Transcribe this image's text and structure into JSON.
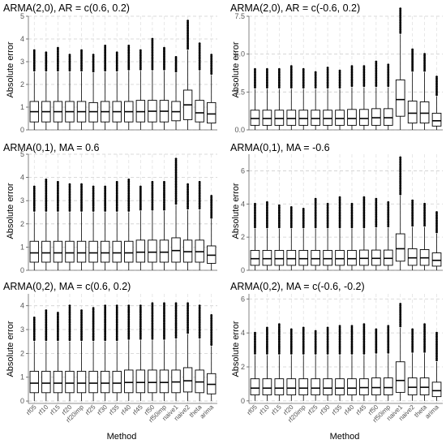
{
  "chart_data": [
    {
      "type": "boxplot",
      "title": "ARMA(2,0), AR = c(0.6, 0.2)",
      "ylabel": "Absolute error",
      "xlabel": "",
      "ylim": [
        0,
        5
      ],
      "yticks": [
        0,
        1,
        2,
        3,
        4,
        5
      ],
      "show_xticklabels": false,
      "grid": true,
      "categories": [
        "rf05",
        "rf10",
        "rf15",
        "rf20",
        "rf20imp",
        "rf25",
        "rf30",
        "rf35",
        "rf40",
        "rf45",
        "rf50",
        "rf50imp",
        "naive1",
        "naive2",
        "theta",
        "arima"
      ],
      "boxes": [
        {
          "whislo": 0,
          "q1": 0.35,
          "med": 0.8,
          "q3": 1.25,
          "whishi": 2.55,
          "outmax": 3.5
        },
        {
          "whislo": 0,
          "q1": 0.35,
          "med": 0.8,
          "q3": 1.25,
          "whishi": 2.55,
          "outmax": 3.4
        },
        {
          "whislo": 0,
          "q1": 0.35,
          "med": 0.8,
          "q3": 1.25,
          "whishi": 2.55,
          "outmax": 3.6
        },
        {
          "whislo": 0,
          "q1": 0.35,
          "med": 0.8,
          "q3": 1.25,
          "whishi": 2.55,
          "outmax": 3.3
        },
        {
          "whislo": 0,
          "q1": 0.35,
          "med": 0.8,
          "q3": 1.25,
          "whishi": 2.55,
          "outmax": 3.5
        },
        {
          "whislo": 0,
          "q1": 0.35,
          "med": 0.8,
          "q3": 1.2,
          "whishi": 2.5,
          "outmax": 3.3
        },
        {
          "whislo": 0,
          "q1": 0.35,
          "med": 0.8,
          "q3": 1.25,
          "whishi": 2.55,
          "outmax": 3.7
        },
        {
          "whislo": 0,
          "q1": 0.35,
          "med": 0.8,
          "q3": 1.25,
          "whishi": 2.55,
          "outmax": 3.4
        },
        {
          "whislo": 0,
          "q1": 0.35,
          "med": 0.8,
          "q3": 1.25,
          "whishi": 2.6,
          "outmax": 3.7
        },
        {
          "whislo": 0,
          "q1": 0.35,
          "med": 0.8,
          "q3": 1.3,
          "whishi": 2.6,
          "outmax": 3.5
        },
        {
          "whislo": 0,
          "q1": 0.35,
          "med": 0.82,
          "q3": 1.3,
          "whishi": 2.6,
          "outmax": 4.0
        },
        {
          "whislo": 0,
          "q1": 0.35,
          "med": 0.82,
          "q3": 1.3,
          "whishi": 2.6,
          "outmax": 3.6
        },
        {
          "whislo": 0,
          "q1": 0.4,
          "med": 0.8,
          "q3": 1.25,
          "whishi": 2.5,
          "outmax": 3.2
        },
        {
          "whislo": 0,
          "q1": 0.45,
          "med": 1.1,
          "q3": 1.75,
          "whishi": 3.5,
          "outmax": 4.8
        },
        {
          "whislo": 0,
          "q1": 0.35,
          "med": 0.75,
          "q3": 1.3,
          "whishi": 2.6,
          "outmax": 3.8
        },
        {
          "whislo": 0,
          "q1": 0.3,
          "med": 0.7,
          "q3": 1.2,
          "whishi": 2.4,
          "outmax": 3.3
        }
      ]
    },
    {
      "type": "boxplot",
      "title": "ARMA(2,0), AR = c(-0.6, 0.2)",
      "ylabel": "Absolute error",
      "xlabel": "",
      "ylim": [
        0,
        7.5
      ],
      "yticks": [
        0,
        2.5,
        5,
        7.5
      ],
      "ytick_labels": [
        "0.0",
        "2.5",
        "5.0",
        "7.5"
      ],
      "show_xticklabels": false,
      "grid": true,
      "categories": [
        "rf05",
        "rf10",
        "rf15",
        "rf20",
        "rf20imp",
        "rf25",
        "rf30",
        "rf35",
        "rf40",
        "rf45",
        "rf50",
        "rf50imp",
        "naive1",
        "naive2",
        "theta",
        "arima"
      ],
      "boxes": [
        {
          "whislo": 0,
          "q1": 0.3,
          "med": 0.75,
          "q3": 1.3,
          "whishi": 2.7,
          "outmax": 4.0
        },
        {
          "whislo": 0,
          "q1": 0.3,
          "med": 0.75,
          "q3": 1.3,
          "whishi": 2.7,
          "outmax": 4.0
        },
        {
          "whislo": 0,
          "q1": 0.3,
          "med": 0.75,
          "q3": 1.3,
          "whishi": 2.7,
          "outmax": 4.0
        },
        {
          "whislo": 0,
          "q1": 0.3,
          "med": 0.75,
          "q3": 1.3,
          "whishi": 2.7,
          "outmax": 4.2
        },
        {
          "whislo": 0,
          "q1": 0.3,
          "med": 0.75,
          "q3": 1.3,
          "whishi": 2.7,
          "outmax": 4.0
        },
        {
          "whislo": 0,
          "q1": 0.3,
          "med": 0.75,
          "q3": 1.3,
          "whishi": 2.7,
          "outmax": 3.8
        },
        {
          "whislo": 0,
          "q1": 0.3,
          "med": 0.75,
          "q3": 1.3,
          "whishi": 2.7,
          "outmax": 4.1
        },
        {
          "whislo": 0,
          "q1": 0.3,
          "med": 0.75,
          "q3": 1.3,
          "whishi": 2.7,
          "outmax": 3.9
        },
        {
          "whislo": 0,
          "q1": 0.3,
          "med": 0.75,
          "q3": 1.35,
          "whishi": 2.8,
          "outmax": 4.2
        },
        {
          "whislo": 0,
          "q1": 0.3,
          "med": 0.75,
          "q3": 1.35,
          "whishi": 2.8,
          "outmax": 4.2
        },
        {
          "whislo": 0,
          "q1": 0.3,
          "med": 0.8,
          "q3": 1.4,
          "whishi": 2.8,
          "outmax": 4.5
        },
        {
          "whislo": 0,
          "q1": 0.3,
          "med": 0.8,
          "q3": 1.4,
          "whishi": 2.8,
          "outmax": 4.3
        },
        {
          "whislo": 0,
          "q1": 0.9,
          "med": 2.0,
          "q3": 3.3,
          "whishi": 6.3,
          "outmax": 8.0
        },
        {
          "whislo": 0,
          "q1": 0.45,
          "med": 1.1,
          "q3": 1.9,
          "whishi": 3.8,
          "outmax": 5.3
        },
        {
          "whislo": 0,
          "q1": 0.45,
          "med": 1.1,
          "q3": 1.85,
          "whishi": 3.8,
          "outmax": 5.0
        },
        {
          "whislo": 0,
          "q1": 0.25,
          "med": 0.6,
          "q3": 1.1,
          "whishi": 2.2,
          "outmax": 3.5
        }
      ]
    },
    {
      "type": "boxplot",
      "title": "ARMA(0,1), MA = 0.6",
      "ylabel": "Absolute error",
      "xlabel": "",
      "ylim": [
        0,
        5
      ],
      "yticks": [
        0,
        1,
        2,
        3,
        4,
        5
      ],
      "show_xticklabels": false,
      "grid": true,
      "categories": [
        "rf05",
        "rf10",
        "rf15",
        "rf20",
        "rf20imp",
        "rf25",
        "rf30",
        "rf35",
        "rf40",
        "rf45",
        "rf50",
        "rf50imp",
        "naive1",
        "naive2",
        "theta",
        "arima"
      ],
      "boxes": [
        {
          "whislo": 0,
          "q1": 0.35,
          "med": 0.75,
          "q3": 1.25,
          "whishi": 2.5,
          "outmax": 3.6
        },
        {
          "whislo": 0,
          "q1": 0.35,
          "med": 0.75,
          "q3": 1.25,
          "whishi": 2.5,
          "outmax": 3.9
        },
        {
          "whislo": 0,
          "q1": 0.35,
          "med": 0.75,
          "q3": 1.25,
          "whishi": 2.5,
          "outmax": 3.8
        },
        {
          "whislo": 0,
          "q1": 0.35,
          "med": 0.75,
          "q3": 1.25,
          "whishi": 2.5,
          "outmax": 3.7
        },
        {
          "whislo": 0,
          "q1": 0.35,
          "med": 0.75,
          "q3": 1.25,
          "whishi": 2.5,
          "outmax": 3.7
        },
        {
          "whislo": 0,
          "q1": 0.35,
          "med": 0.75,
          "q3": 1.25,
          "whishi": 2.5,
          "outmax": 3.6
        },
        {
          "whislo": 0,
          "q1": 0.35,
          "med": 0.75,
          "q3": 1.25,
          "whishi": 2.5,
          "outmax": 3.6
        },
        {
          "whislo": 0,
          "q1": 0.35,
          "med": 0.75,
          "q3": 1.25,
          "whishi": 2.5,
          "outmax": 3.8
        },
        {
          "whislo": 0,
          "q1": 0.35,
          "med": 0.75,
          "q3": 1.25,
          "whishi": 2.5,
          "outmax": 3.9
        },
        {
          "whislo": 0,
          "q1": 0.35,
          "med": 0.78,
          "q3": 1.3,
          "whishi": 2.55,
          "outmax": 3.6
        },
        {
          "whislo": 0,
          "q1": 0.35,
          "med": 0.78,
          "q3": 1.3,
          "whishi": 2.55,
          "outmax": 3.8
        },
        {
          "whislo": 0,
          "q1": 0.35,
          "med": 0.78,
          "q3": 1.3,
          "whishi": 2.55,
          "outmax": 3.8
        },
        {
          "whislo": 0,
          "q1": 0.35,
          "med": 0.85,
          "q3": 1.4,
          "whishi": 2.8,
          "outmax": 4.8
        },
        {
          "whislo": 0,
          "q1": 0.35,
          "med": 0.8,
          "q3": 1.3,
          "whishi": 2.6,
          "outmax": 3.7
        },
        {
          "whislo": 0,
          "q1": 0.35,
          "med": 0.8,
          "q3": 1.3,
          "whishi": 2.6,
          "outmax": 3.8
        },
        {
          "whislo": 0,
          "q1": 0.3,
          "med": 0.65,
          "q3": 1.05,
          "whishi": 2.2,
          "outmax": 3.2
        }
      ]
    },
    {
      "type": "boxplot",
      "title": "ARMA(0,1), MA = -0.6",
      "ylabel": "Absolute error",
      "xlabel": "",
      "ylim": [
        0,
        7
      ],
      "yticks": [
        0,
        2,
        4,
        6
      ],
      "show_xticklabels": false,
      "grid": true,
      "categories": [
        "rf05",
        "rf10",
        "rf15",
        "rf20",
        "rf20imp",
        "rf25",
        "rf30",
        "rf35",
        "rf40",
        "rf45",
        "rf50",
        "rf50imp",
        "naive1",
        "naive2",
        "theta",
        "arima"
      ],
      "boxes": [
        {
          "whislo": 0,
          "q1": 0.3,
          "med": 0.7,
          "q3": 1.2,
          "whishi": 2.5,
          "outmax": 4.0
        },
        {
          "whislo": 0,
          "q1": 0.3,
          "med": 0.7,
          "q3": 1.2,
          "whishi": 2.5,
          "outmax": 4.1
        },
        {
          "whislo": 0,
          "q1": 0.3,
          "med": 0.7,
          "q3": 1.2,
          "whishi": 2.5,
          "outmax": 3.9
        },
        {
          "whislo": 0,
          "q1": 0.3,
          "med": 0.7,
          "q3": 1.2,
          "whishi": 2.5,
          "outmax": 3.8
        },
        {
          "whislo": 0,
          "q1": 0.3,
          "med": 0.7,
          "q3": 1.2,
          "whishi": 2.5,
          "outmax": 3.7
        },
        {
          "whislo": 0,
          "q1": 0.3,
          "med": 0.7,
          "q3": 1.2,
          "whishi": 2.5,
          "outmax": 4.3
        },
        {
          "whislo": 0,
          "q1": 0.3,
          "med": 0.7,
          "q3": 1.2,
          "whishi": 2.5,
          "outmax": 4.0
        },
        {
          "whislo": 0,
          "q1": 0.3,
          "med": 0.7,
          "q3": 1.2,
          "whishi": 2.5,
          "outmax": 4.4
        },
        {
          "whislo": 0,
          "q1": 0.3,
          "med": 0.7,
          "q3": 1.2,
          "whishi": 2.5,
          "outmax": 4.0
        },
        {
          "whislo": 0,
          "q1": 0.3,
          "med": 0.72,
          "q3": 1.22,
          "whishi": 2.5,
          "outmax": 4.4
        },
        {
          "whislo": 0,
          "q1": 0.3,
          "med": 0.72,
          "q3": 1.22,
          "whishi": 2.55,
          "outmax": 4.3
        },
        {
          "whislo": 0,
          "q1": 0.3,
          "med": 0.72,
          "q3": 1.22,
          "whishi": 2.55,
          "outmax": 4.1
        },
        {
          "whislo": 0,
          "q1": 0.55,
          "med": 1.3,
          "q3": 2.2,
          "whishi": 4.5,
          "outmax": 6.8
        },
        {
          "whislo": 0,
          "q1": 0.3,
          "med": 0.75,
          "q3": 1.3,
          "whishi": 2.6,
          "outmax": 4.2
        },
        {
          "whislo": 0,
          "q1": 0.3,
          "med": 0.75,
          "q3": 1.25,
          "whishi": 2.6,
          "outmax": 4.0
        },
        {
          "whislo": 0,
          "q1": 0.25,
          "med": 0.6,
          "q3": 1.05,
          "whishi": 2.2,
          "outmax": 3.5
        }
      ]
    },
    {
      "type": "boxplot",
      "title": "ARMA(0,2), MA = c(0.6, 0.2)",
      "ylabel": "Absolute error",
      "xlabel": "Method",
      "ylim": [
        -0.1,
        4.5
      ],
      "yticks": [
        0,
        1,
        2,
        3,
        4
      ],
      "show_xticklabels": true,
      "grid": true,
      "categories": [
        "rf05",
        "rf10",
        "rf15",
        "rf20",
        "rf20imp",
        "rf25",
        "rf30",
        "rf35",
        "rf40",
        "rf45",
        "rf50",
        "rf50imp",
        "naive1",
        "naive2",
        "theta",
        "arima"
      ],
      "boxes": [
        {
          "whislo": 0,
          "q1": 0.35,
          "med": 0.75,
          "q3": 1.25,
          "whishi": 2.5,
          "outmax": 3.5
        },
        {
          "whislo": 0,
          "q1": 0.35,
          "med": 0.75,
          "q3": 1.25,
          "whishi": 2.5,
          "outmax": 3.8
        },
        {
          "whislo": 0,
          "q1": 0.35,
          "med": 0.75,
          "q3": 1.25,
          "whishi": 2.5,
          "outmax": 3.7
        },
        {
          "whislo": 0,
          "q1": 0.35,
          "med": 0.75,
          "q3": 1.25,
          "whishi": 2.5,
          "outmax": 4.0
        },
        {
          "whislo": 0,
          "q1": 0.35,
          "med": 0.75,
          "q3": 1.25,
          "whishi": 2.5,
          "outmax": 3.8
        },
        {
          "whislo": 0,
          "q1": 0.35,
          "med": 0.75,
          "q3": 1.25,
          "whishi": 2.5,
          "outmax": 3.9
        },
        {
          "whislo": 0,
          "q1": 0.35,
          "med": 0.75,
          "q3": 1.25,
          "whishi": 2.5,
          "outmax": 4.0
        },
        {
          "whislo": 0,
          "q1": 0.35,
          "med": 0.75,
          "q3": 1.25,
          "whishi": 2.5,
          "outmax": 4.0
        },
        {
          "whislo": 0,
          "q1": 0.35,
          "med": 0.78,
          "q3": 1.3,
          "whishi": 2.55,
          "outmax": 4.0
        },
        {
          "whislo": 0,
          "q1": 0.35,
          "med": 0.78,
          "q3": 1.3,
          "whishi": 2.55,
          "outmax": 4.0
        },
        {
          "whislo": 0,
          "q1": 0.35,
          "med": 0.78,
          "q3": 1.3,
          "whishi": 2.55,
          "outmax": 4.1
        },
        {
          "whislo": 0,
          "q1": 0.35,
          "med": 0.78,
          "q3": 1.3,
          "whishi": 2.55,
          "outmax": 4.1
        },
        {
          "whislo": 0,
          "q1": 0.35,
          "med": 0.8,
          "q3": 1.3,
          "whishi": 2.6,
          "outmax": 4.1
        },
        {
          "whislo": 0,
          "q1": 0.38,
          "med": 0.85,
          "q3": 1.4,
          "whishi": 2.8,
          "outmax": 4.1
        },
        {
          "whislo": 0,
          "q1": 0.35,
          "med": 0.8,
          "q3": 1.3,
          "whishi": 2.6,
          "outmax": 4.0
        },
        {
          "whislo": 0,
          "q1": 0.3,
          "med": 0.7,
          "q3": 1.15,
          "whishi": 2.3,
          "outmax": 3.6
        }
      ]
    },
    {
      "type": "boxplot",
      "title": "ARMA(0,2), MA = c(-0.6, -0.2)",
      "ylabel": "Absolute error",
      "xlabel": "Method",
      "ylim": [
        -0.15,
        6.3
      ],
      "yticks": [
        0,
        2,
        4,
        6
      ],
      "show_xticklabels": true,
      "grid": true,
      "categories": [
        "rf05",
        "rf10",
        "rf15",
        "rf20",
        "rf20imp",
        "rf25",
        "rf30",
        "rf35",
        "rf40",
        "rf45",
        "rf50",
        "rf50imp",
        "naive1",
        "naive2",
        "theta",
        "arima"
      ],
      "boxes": [
        {
          "whislo": 0,
          "q1": 0.35,
          "med": 0.75,
          "q3": 1.3,
          "whishi": 2.7,
          "outmax": 4.0
        },
        {
          "whislo": 0,
          "q1": 0.35,
          "med": 0.75,
          "q3": 1.3,
          "whishi": 2.7,
          "outmax": 4.3
        },
        {
          "whislo": 0,
          "q1": 0.35,
          "med": 0.75,
          "q3": 1.3,
          "whishi": 2.7,
          "outmax": 4.5
        },
        {
          "whislo": 0,
          "q1": 0.35,
          "med": 0.75,
          "q3": 1.3,
          "whishi": 2.7,
          "outmax": 4.2
        },
        {
          "whislo": 0,
          "q1": 0.35,
          "med": 0.75,
          "q3": 1.3,
          "whishi": 2.7,
          "outmax": 4.3
        },
        {
          "whislo": 0,
          "q1": 0.35,
          "med": 0.75,
          "q3": 1.3,
          "whishi": 2.7,
          "outmax": 4.1
        },
        {
          "whislo": 0,
          "q1": 0.35,
          "med": 0.75,
          "q3": 1.3,
          "whishi": 2.7,
          "outmax": 4.3
        },
        {
          "whislo": 0,
          "q1": 0.35,
          "med": 0.75,
          "q3": 1.3,
          "whishi": 2.7,
          "outmax": 4.4
        },
        {
          "whislo": 0,
          "q1": 0.35,
          "med": 0.75,
          "q3": 1.3,
          "whishi": 2.7,
          "outmax": 4.4
        },
        {
          "whislo": 0,
          "q1": 0.35,
          "med": 0.78,
          "q3": 1.3,
          "whishi": 2.7,
          "outmax": 4.5
        },
        {
          "whislo": 0,
          "q1": 0.35,
          "med": 0.78,
          "q3": 1.35,
          "whishi": 2.75,
          "outmax": 4.2
        },
        {
          "whislo": 0,
          "q1": 0.35,
          "med": 0.78,
          "q3": 1.35,
          "whishi": 2.75,
          "outmax": 4.4
        },
        {
          "whislo": 0,
          "q1": 0.5,
          "med": 1.2,
          "q3": 2.3,
          "whishi": 4.3,
          "outmax": 5.7
        },
        {
          "whislo": 0,
          "q1": 0.35,
          "med": 0.8,
          "q3": 1.35,
          "whishi": 2.8,
          "outmax": 4.2
        },
        {
          "whislo": 0,
          "q1": 0.35,
          "med": 0.8,
          "q3": 1.35,
          "whishi": 2.8,
          "outmax": 4.5
        },
        {
          "whislo": 0,
          "q1": 0.25,
          "med": 0.6,
          "q3": 1.1,
          "whishi": 2.3,
          "outmax": 4.0
        }
      ]
    }
  ]
}
